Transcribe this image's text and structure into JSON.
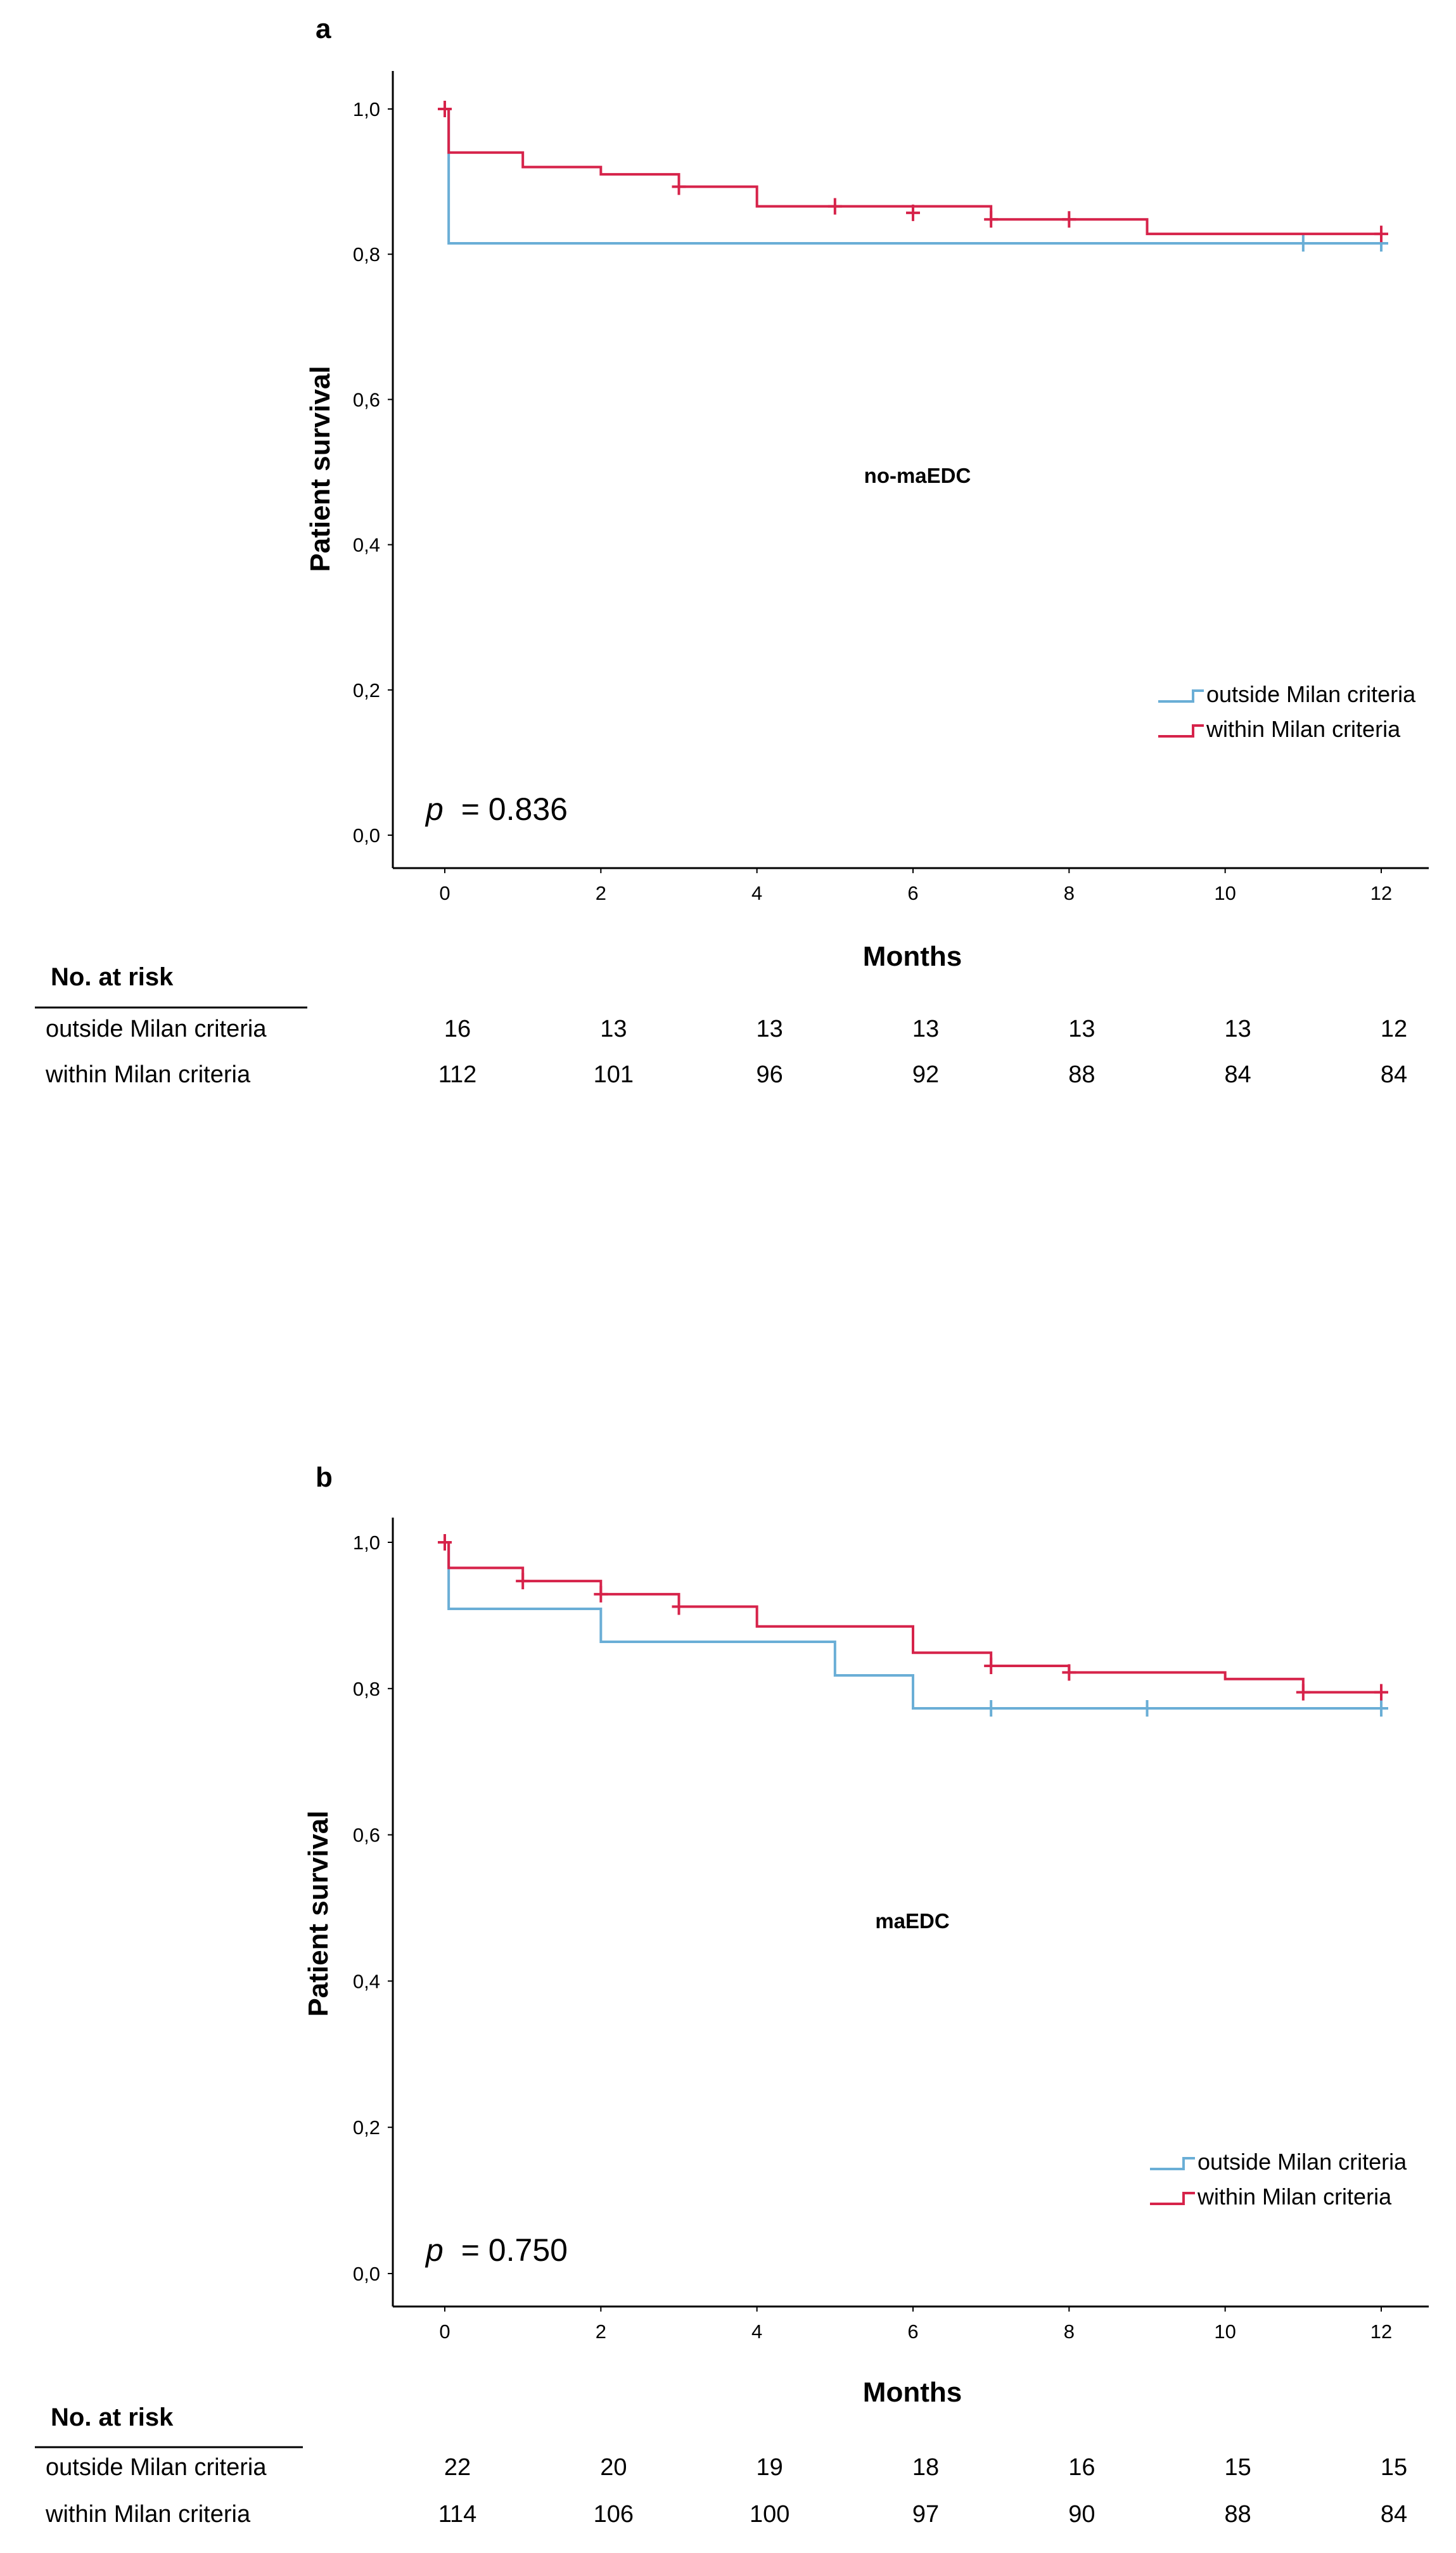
{
  "chart_data": [
    {
      "panel": "a",
      "type": "line",
      "subtype": "kaplan-meier",
      "title": "no-maEDC",
      "xlabel": "Months",
      "ylabel": "Patient survival",
      "xlim": [
        0,
        12
      ],
      "ylim": [
        0,
        1.05
      ],
      "xticks": [
        0,
        2,
        4,
        6,
        8,
        10,
        12
      ],
      "yticks": [
        0.0,
        0.2,
        0.4,
        0.6,
        0.8,
        1.0
      ],
      "ytick_labels": [
        "0,0",
        "0,2",
        "0,4",
        "0,6",
        "0,8",
        "1,0"
      ],
      "p_label": "p",
      "p_value": "= 0.836",
      "legend_position": "bottom-right",
      "series": [
        {
          "name": "outside Milan criteria",
          "color": "#6aaed6",
          "steps": [
            [
              0,
              1.0
            ],
            [
              0.05,
              0.815
            ]
          ],
          "end_x": 12,
          "censors": [
            [
              11,
              0.815
            ],
            [
              12,
              0.815
            ]
          ]
        },
        {
          "name": "within Milan criteria",
          "color": "#d6234a",
          "steps": [
            [
              0,
              1.0
            ],
            [
              0.05,
              0.94
            ],
            [
              1,
              0.92
            ],
            [
              2,
              0.91
            ],
            [
              3,
              0.893
            ],
            [
              4,
              0.866
            ],
            [
              7,
              0.848
            ],
            [
              9,
              0.828
            ]
          ],
          "end_x": 12,
          "censors": [
            [
              0,
              1.0
            ],
            [
              3,
              0.893
            ],
            [
              5,
              0.866
            ],
            [
              6,
              0.857
            ],
            [
              7,
              0.848
            ],
            [
              8,
              0.848
            ],
            [
              12,
              0.828
            ]
          ]
        }
      ],
      "risk_table": {
        "header": "No. at risk",
        "times": [
          0,
          2,
          4,
          6,
          8,
          10,
          12
        ],
        "rows": [
          {
            "label": "outside Milan criteria",
            "values": [
              "16",
              "13",
              "13",
              "13",
              "13",
              "13",
              "12"
            ]
          },
          {
            "label": "within Milan criteria",
            "values": [
              "112",
              "101",
              "96",
              "92",
              "88",
              "84",
              "84"
            ]
          }
        ]
      }
    },
    {
      "panel": "b",
      "type": "line",
      "subtype": "kaplan-meier",
      "title": "maEDC",
      "xlabel": "Months",
      "ylabel": "Patient survival",
      "xlim": [
        0,
        12
      ],
      "ylim": [
        0,
        1.05
      ],
      "xticks": [
        0,
        2,
        4,
        6,
        8,
        10,
        12
      ],
      "yticks": [
        0.0,
        0.2,
        0.4,
        0.6,
        0.8,
        1.0
      ],
      "ytick_labels": [
        "0,0",
        "0,2",
        "0,4",
        "0,6",
        "0,8",
        "1,0"
      ],
      "p_label": "p",
      "p_value": "= 0.750",
      "legend_position": "bottom-right",
      "series": [
        {
          "name": "outside Milan criteria",
          "color": "#6aaed6",
          "steps": [
            [
              0,
              1.0
            ],
            [
              0.05,
              0.909
            ],
            [
              2,
              0.864
            ],
            [
              5,
              0.818
            ],
            [
              6,
              0.773
            ]
          ],
          "end_x": 12,
          "censors": [
            [
              7,
              0.773
            ],
            [
              9,
              0.773
            ],
            [
              12,
              0.773
            ]
          ]
        },
        {
          "name": "within Milan criteria",
          "color": "#d6234a",
          "steps": [
            [
              0,
              1.0
            ],
            [
              0.05,
              0.965
            ],
            [
              1,
              0.947
            ],
            [
              2,
              0.929
            ],
            [
              3,
              0.912
            ],
            [
              4,
              0.885
            ],
            [
              6,
              0.849
            ],
            [
              7,
              0.831
            ],
            [
              8,
              0.822
            ],
            [
              10,
              0.813
            ],
            [
              11,
              0.795
            ]
          ],
          "end_x": 12,
          "censors": [
            [
              0,
              1.0
            ],
            [
              1,
              0.947
            ],
            [
              2,
              0.929
            ],
            [
              3,
              0.912
            ],
            [
              7,
              0.831
            ],
            [
              8,
              0.822
            ],
            [
              11,
              0.795
            ],
            [
              12,
              0.795
            ]
          ]
        }
      ],
      "risk_table": {
        "header": "No. at risk",
        "times": [
          0,
          2,
          4,
          6,
          8,
          10,
          12
        ],
        "rows": [
          {
            "label": "outside Milan criteria",
            "values": [
              "22",
              "20",
              "19",
              "18",
              "16",
              "15",
              "15"
            ]
          },
          {
            "label": "within Milan criteria",
            "values": [
              "114",
              "106",
              "100",
              "97",
              "90",
              "88",
              "84"
            ]
          }
        ]
      }
    }
  ]
}
